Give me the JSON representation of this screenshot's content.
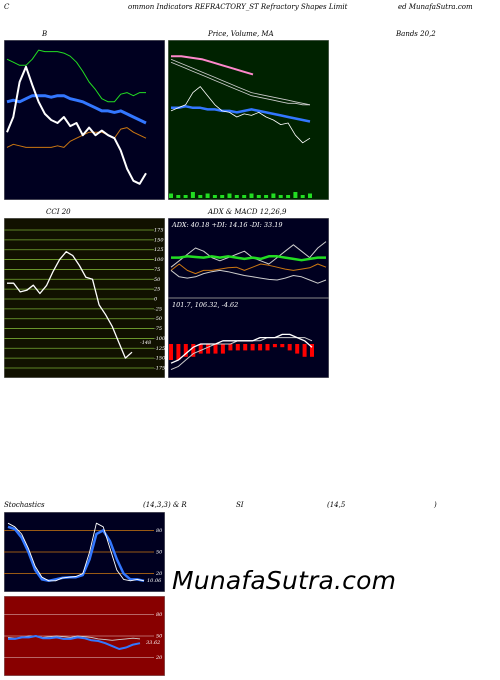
{
  "header": {
    "left": "C",
    "mid": "ommon  Indicators REFRACTORY_ST Refractory Shapes Limit",
    "right": "ed MunafaSutra.com"
  },
  "labels": {
    "b": "B",
    "price": "Price,  Volume,  MA",
    "bands": "Bands 20,2",
    "cci": "CCI 20",
    "adx_title": "ADX  & MACD 12,26,9",
    "stoch_a": "Stochastics",
    "stoch_b": "(14,3,3) & R",
    "stoch_c": "SI",
    "stoch_d": "(14,5",
    "stoch_e": ")"
  },
  "watermark": "MunafaSutra.com",
  "colors": {
    "navy_bg": "#000020",
    "green_bg": "#002200",
    "cci_bg": "#111100",
    "rsi_bg": "#880000",
    "white": "#ffffff",
    "blue": "#3377ff",
    "orange": "#cc7711",
    "green": "#22dd22",
    "grey": "#cccccc",
    "pink": "#ff88cc",
    "red": "#ff0000"
  },
  "chart_data": [
    {
      "id": "bollinger",
      "type": "line",
      "title": "B",
      "ylim": [
        0,
        100
      ],
      "series": [
        {
          "values": [
            42,
            52,
            75,
            85,
            73,
            62,
            54,
            50,
            48,
            52,
            46,
            48,
            40,
            45,
            40,
            43,
            40,
            38,
            30,
            18,
            10,
            8,
            15
          ]
        },
        {
          "values": [
            62,
            63,
            62,
            64,
            66,
            66,
            66,
            65,
            66,
            66,
            64,
            63,
            62,
            60,
            58,
            56,
            56,
            55,
            56,
            54,
            52,
            50,
            48
          ]
        },
        {
          "values": [
            32,
            34,
            33,
            32,
            32,
            32,
            32,
            32,
            33,
            32,
            36,
            38,
            40,
            42,
            42,
            42,
            40,
            38,
            44,
            45,
            42,
            40,
            38
          ]
        },
        {
          "values": [
            90,
            88,
            86,
            86,
            90,
            96,
            95,
            95,
            95,
            94,
            92,
            88,
            82,
            75,
            70,
            64,
            62,
            62,
            67,
            68,
            66,
            68,
            68
          ]
        }
      ]
    },
    {
      "id": "price",
      "type": "line",
      "title": "Price,  Volume,  MA",
      "ylim": [
        0,
        100
      ],
      "series": [
        {
          "values": [
            92,
            92,
            91,
            90,
            88,
            86,
            84,
            82,
            80
          ]
        },
        {
          "values": [
            90,
            88,
            86,
            84,
            82,
            80,
            78,
            76,
            74,
            72,
            70,
            68,
            67,
            66,
            65,
            64,
            63,
            62,
            61,
            60
          ]
        },
        {
          "values": [
            88,
            86,
            84,
            82,
            80,
            78,
            76,
            74,
            72,
            70,
            68,
            66,
            65,
            64,
            63,
            62,
            61,
            61,
            60,
            60
          ]
        },
        {
          "values": [
            58,
            58,
            59,
            58,
            58,
            57,
            57,
            56,
            56,
            55,
            56,
            57,
            56,
            55,
            54,
            53,
            52,
            51,
            50,
            49
          ]
        },
        {
          "values": [
            56,
            58,
            60,
            68,
            72,
            66,
            60,
            56,
            55,
            52,
            54,
            53,
            55,
            52,
            50,
            47,
            48,
            40,
            35,
            38
          ]
        }
      ],
      "volume": [
        3,
        2,
        2,
        4,
        2,
        3,
        2,
        2,
        3,
        2,
        2,
        3,
        2,
        2,
        3,
        2,
        2,
        4,
        2,
        3
      ]
    },
    {
      "id": "cci",
      "type": "line",
      "title": "CCI 20",
      "ylim": [
        -175,
        175
      ],
      "ticks": [
        "175",
        "150",
        "125",
        "100",
        "75",
        "50",
        "25",
        "0",
        "-25",
        "-50",
        "-75",
        "-100",
        "-125",
        "-150",
        "-175"
      ],
      "series": [
        {
          "values": [
            40,
            40,
            18,
            22,
            35,
            14,
            34,
            70,
            100,
            120,
            110,
            85,
            55,
            50,
            -15,
            -40,
            -70,
            -110,
            -150,
            -135
          ]
        }
      ],
      "annotation": "-148"
    },
    {
      "id": "adx",
      "type": "line",
      "title": "ADX: 40.18  +DI: 14.16  -DI: 33.19",
      "ylim": [
        0,
        100
      ],
      "series": [
        {
          "values": [
            40,
            50,
            40,
            35,
            40,
            40,
            42,
            44,
            45,
            40,
            45,
            50,
            48,
            45,
            42,
            40,
            42,
            44,
            50,
            45
          ]
        },
        {
          "values": [
            60,
            60,
            62,
            61,
            60,
            62,
            60,
            62,
            60,
            58,
            60,
            58,
            62,
            62,
            60,
            58,
            56,
            58,
            60,
            60
          ]
        },
        {
          "values": [
            40,
            30,
            28,
            30,
            35,
            38,
            40,
            38,
            35,
            32,
            30,
            28,
            26,
            25,
            28,
            32,
            30,
            25,
            20,
            25
          ]
        },
        {
          "values": [
            45,
            55,
            65,
            75,
            70,
            60,
            55,
            60,
            65,
            70,
            60,
            55,
            50,
            60,
            70,
            80,
            70,
            60,
            75,
            85
          ]
        }
      ]
    },
    {
      "id": "macd",
      "type": "line",
      "title": "101.7,  106.32,  -4.62",
      "ylim": [
        -10,
        10
      ],
      "series": [
        {
          "values": [
            -6,
            -5,
            -3,
            -1,
            0,
            0,
            0,
            1,
            1,
            1,
            1,
            1,
            2,
            2,
            2,
            3,
            3,
            2,
            1,
            -1
          ]
        },
        {
          "values": [
            -8,
            -7,
            -5,
            -3,
            -2,
            -1,
            0,
            0,
            0,
            1,
            1,
            1,
            1,
            2,
            2,
            2,
            2,
            2,
            2,
            1
          ]
        }
      ],
      "histogram": [
        -5,
        -5,
        -4,
        -4,
        -3,
        -3,
        -3,
        -3,
        -2,
        -2,
        -2,
        -2,
        -2,
        -2,
        -1,
        -1,
        -2,
        -3,
        -4,
        -4
      ]
    },
    {
      "id": "stochastics",
      "type": "line",
      "title": "Stochastics",
      "ylim": [
        0,
        100
      ],
      "ticks": [
        "80",
        "50",
        "20"
      ],
      "series": [
        {
          "values": [
            85,
            82,
            70,
            50,
            25,
            12,
            10,
            12,
            14,
            15,
            15,
            18,
            40,
            75,
            80,
            65,
            40,
            20,
            12,
            12,
            10
          ]
        },
        {
          "values": [
            90,
            85,
            75,
            55,
            30,
            15,
            10,
            10,
            14,
            15,
            16,
            20,
            50,
            90,
            85,
            55,
            25,
            12,
            10,
            12,
            10
          ]
        }
      ],
      "annotation": "10.06"
    },
    {
      "id": "rsi",
      "type": "line",
      "title": "SI",
      "ylim": [
        0,
        100
      ],
      "ticks": [
        "80",
        "50",
        "20"
      ],
      "series": [
        {
          "values": [
            48,
            47,
            48,
            50,
            50,
            48,
            49,
            50,
            49,
            48,
            50,
            49,
            48,
            46,
            45,
            44,
            45,
            46,
            47,
            46
          ]
        },
        {
          "values": [
            46,
            46,
            48,
            48,
            50,
            47,
            47,
            48,
            46,
            46,
            48,
            47,
            44,
            43,
            40,
            36,
            32,
            34,
            38,
            40
          ]
        }
      ],
      "annotation": "33.62"
    }
  ]
}
